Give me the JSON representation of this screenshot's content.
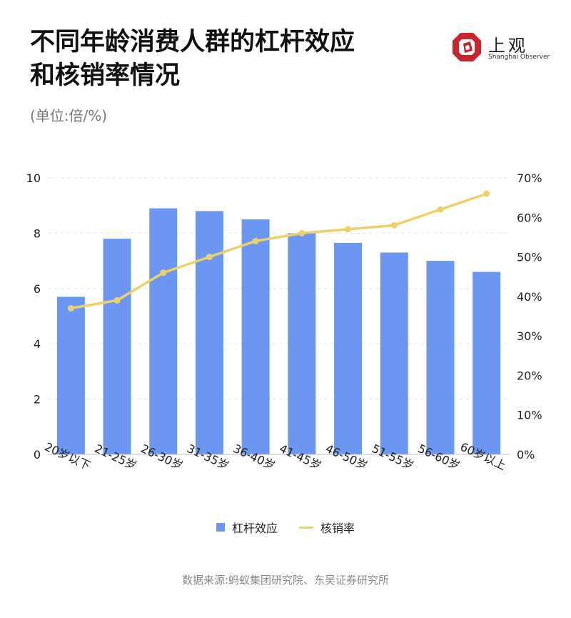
{
  "title_lines": [
    "不同年龄消费人群的杠杆效应",
    "和核销率情况"
  ],
  "unit": "(单位:倍/%)",
  "brand": {
    "name_cn": "上观",
    "name_en": "Shanghai Observer",
    "icon": "shanghai-observer-logo-icon",
    "color": "#c8262c"
  },
  "source": "数据来源:蚂蚁集团研究院、东吴证券研究所",
  "chart_data": {
    "type": "bar",
    "categories": [
      "20岁以下",
      "21-25岁",
      "26-30岁",
      "31-35岁",
      "36-40岁",
      "41-45岁",
      "46-50岁",
      "51-55岁",
      "56-60岁",
      "60岁以上"
    ],
    "series": [
      {
        "name": "杠杆效应",
        "type": "bar",
        "axis": "left",
        "color": "#6b96f2",
        "values": [
          5.7,
          7.8,
          8.9,
          8.8,
          8.5,
          8.0,
          7.65,
          7.3,
          7.0,
          6.6
        ]
      },
      {
        "name": "核销率",
        "type": "line",
        "axis": "right",
        "color": "#ecd16b",
        "values": [
          37,
          39,
          46,
          50,
          54,
          56,
          57,
          58,
          62,
          66
        ]
      }
    ],
    "y_left": {
      "min": 0,
      "max": 10,
      "ticks": [
        "0",
        "2",
        "4",
        "6",
        "8",
        "10"
      ]
    },
    "y_right": {
      "min": 0,
      "max": 70,
      "ticks": [
        "0%",
        "10%",
        "20%",
        "30%",
        "40%",
        "50%",
        "60%",
        "70%"
      ]
    },
    "grid": true,
    "legend_position": "bottom"
  }
}
